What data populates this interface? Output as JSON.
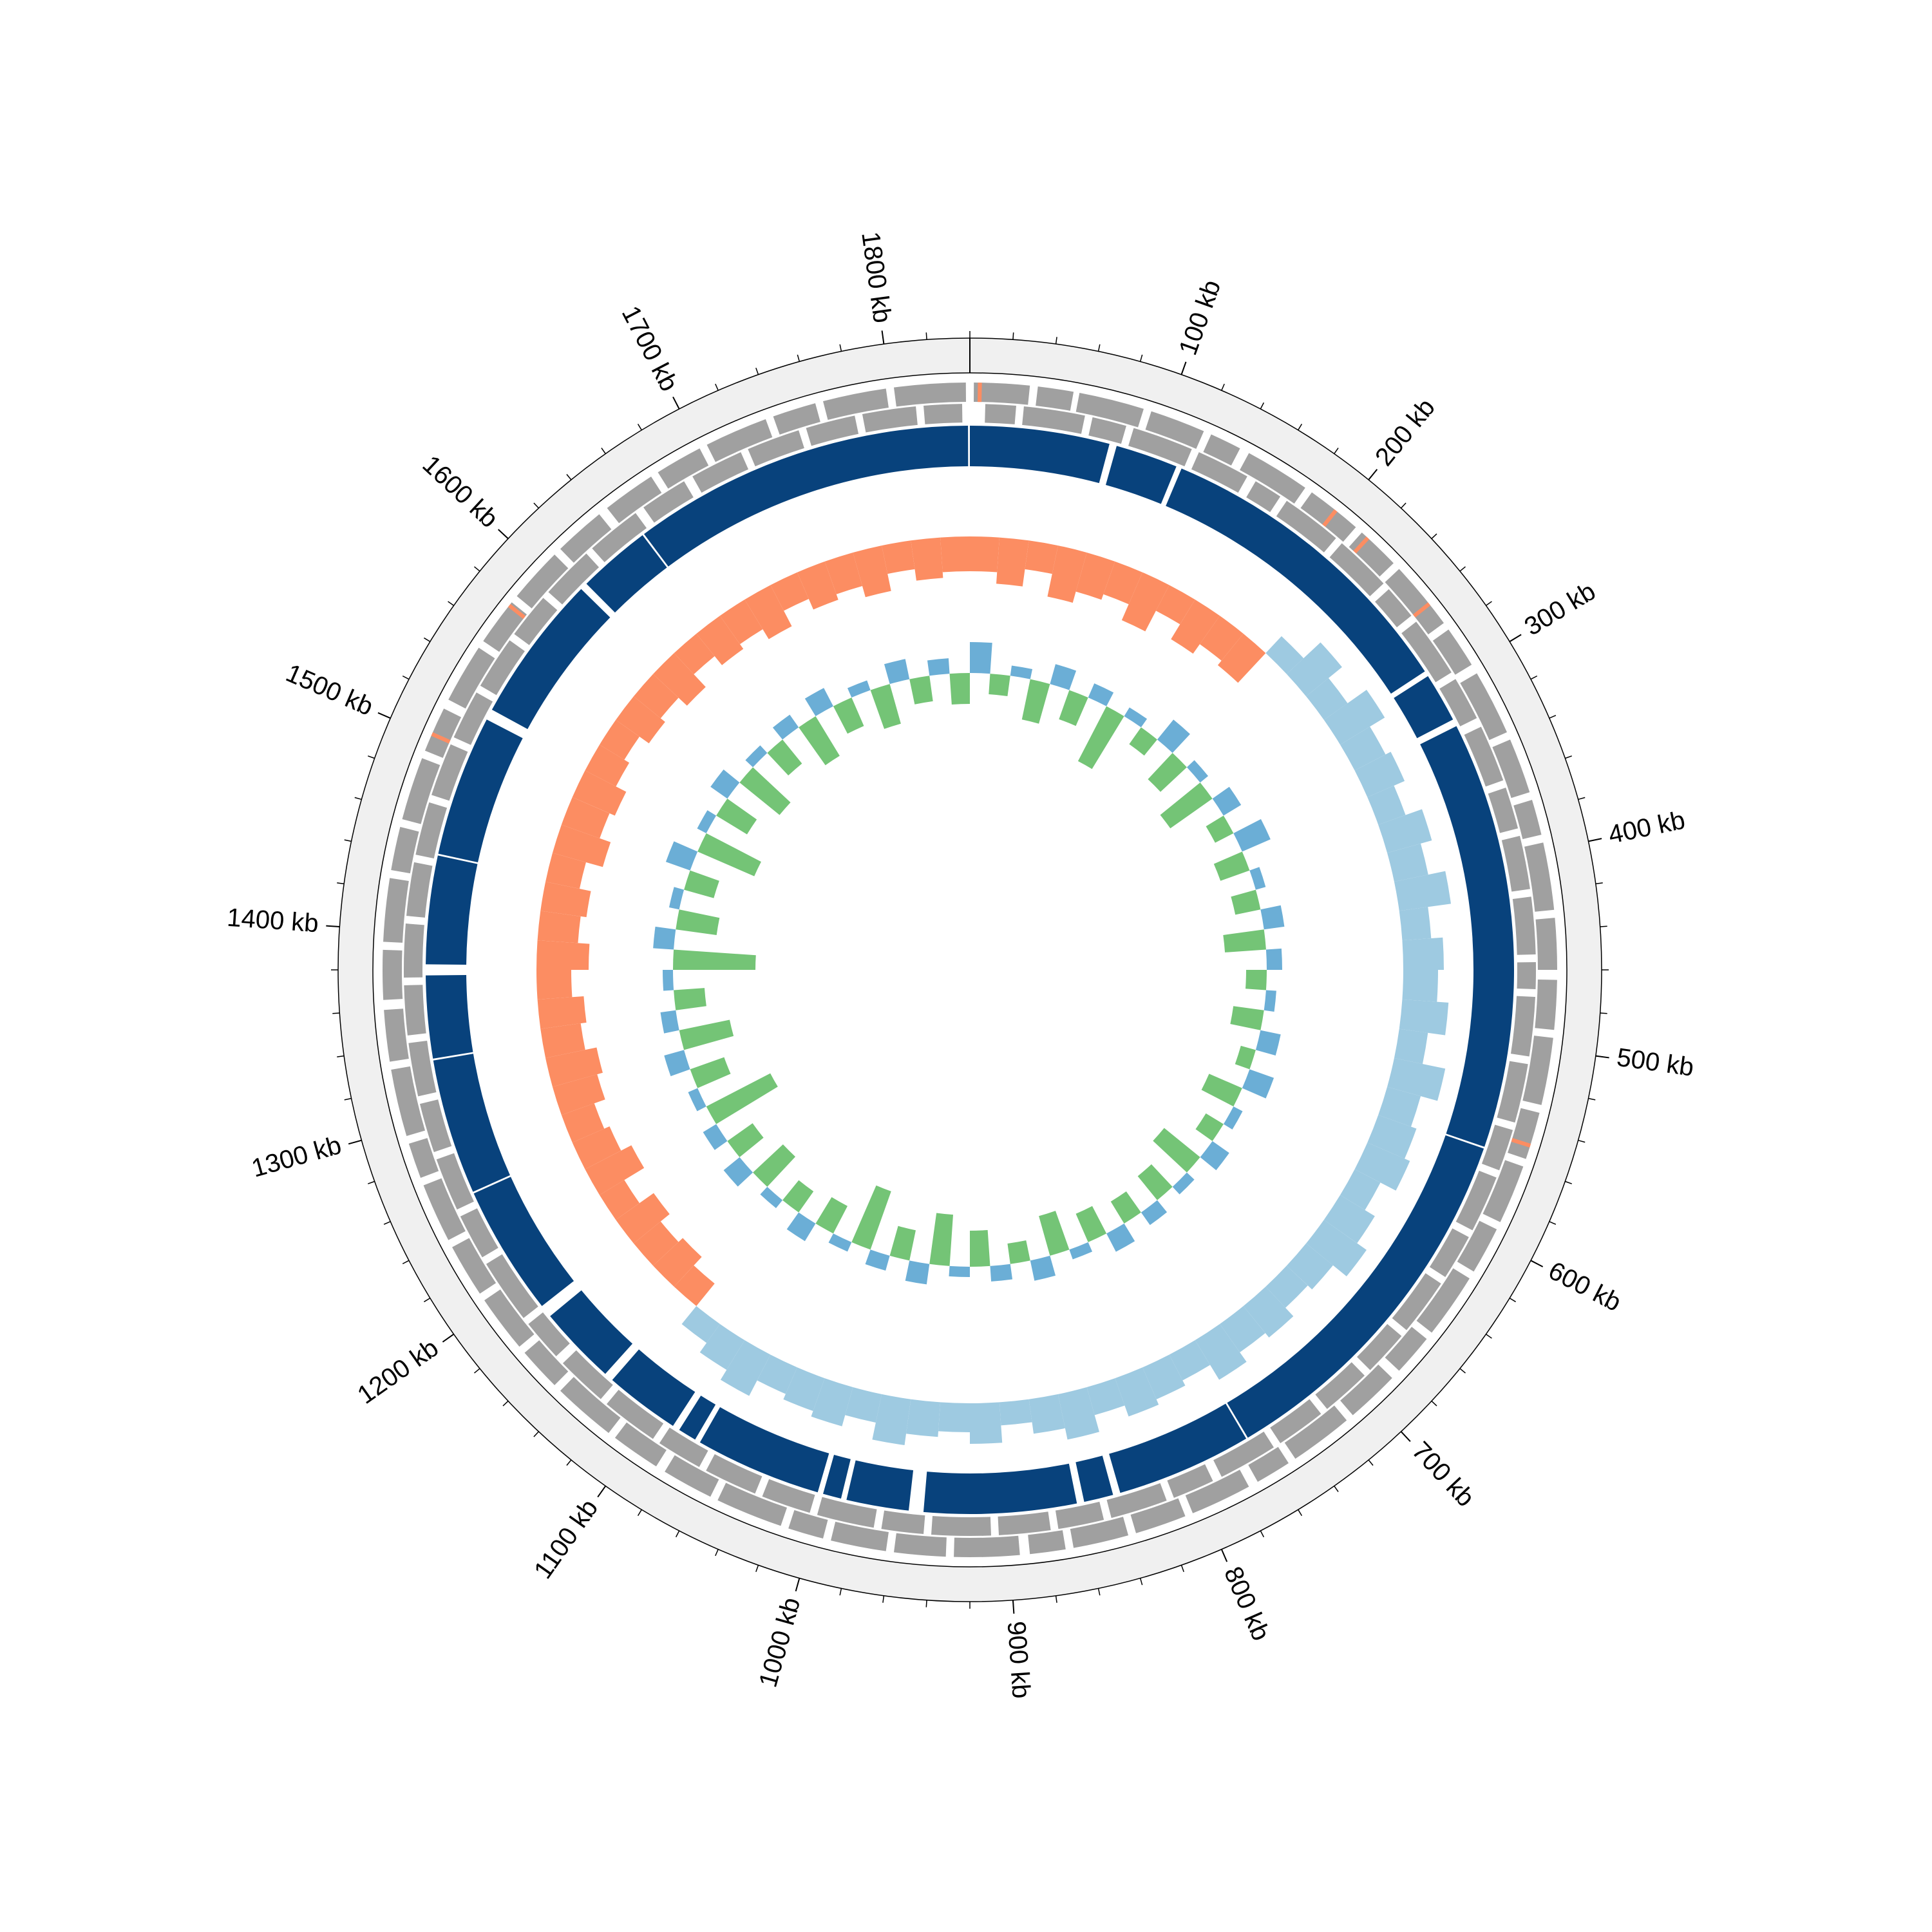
{
  "chart_data": {
    "type": "circos",
    "xlim": [
      0,
      1840
    ],
    "major_ticks": [
      {
        "value": 100,
        "label": "100 kb"
      },
      {
        "value": 200,
        "label": "200 kb"
      },
      {
        "value": 300,
        "label": "300 kb"
      },
      {
        "value": 400,
        "label": "400 kb"
      },
      {
        "value": 500,
        "label": "500 kb"
      },
      {
        "value": 600,
        "label": "600 kb"
      },
      {
        "value": 700,
        "label": "700 kb"
      },
      {
        "value": 800,
        "label": "800 kb"
      },
      {
        "value": 900,
        "label": "900 kb"
      },
      {
        "value": 1000,
        "label": "1000 kb"
      },
      {
        "value": 1100,
        "label": "1100 kb"
      },
      {
        "value": 1200,
        "label": "1200 kb"
      },
      {
        "value": 1300,
        "label": "1300 kb"
      },
      {
        "value": 1400,
        "label": "1400 kb"
      },
      {
        "value": 1500,
        "label": "1500 kb"
      },
      {
        "value": 1600,
        "label": "1600 kb"
      },
      {
        "value": 1700,
        "label": "1700 kb"
      },
      {
        "value": 1800,
        "label": "1800 kb"
      }
    ],
    "minor_ticks": [
      0,
      20,
      40,
      60,
      80,
      100,
      120,
      140,
      160,
      180,
      200,
      220,
      240,
      260,
      280,
      300,
      320,
      340,
      360,
      380,
      400,
      420,
      440,
      460,
      480,
      500,
      520,
      540,
      560,
      580,
      600,
      620,
      640,
      660,
      680,
      700,
      720,
      740,
      760,
      780,
      800,
      820,
      840,
      860,
      880,
      900,
      920,
      940,
      960,
      980,
      1000,
      1020,
      1040,
      1060,
      1080,
      1100,
      1120,
      1140,
      1160,
      1180,
      1200,
      1220,
      1240,
      1260,
      1280,
      1300,
      1320,
      1340,
      1360,
      1380,
      1400,
      1420,
      1440,
      1460,
      1480,
      1500,
      1520,
      1540,
      1560,
      1580,
      1600,
      1620,
      1640,
      1660,
      1680,
      1700,
      1720,
      1740,
      1760,
      1780,
      1800,
      1820
    ],
    "contig_color": "#08427c",
    "contigs": [
      [
        0,
        76
      ],
      [
        80,
        114
      ],
      [
        117,
        290
      ],
      [
        293,
        320
      ],
      [
        324,
        557
      ],
      [
        558,
        763
      ],
      [
        764,
        838
      ],
      [
        842,
        858
      ],
      [
        862,
        945
      ],
      [
        953,
        987
      ],
      [
        990,
        1000
      ],
      [
        1003,
        1072
      ],
      [
        1075,
        1085
      ],
      [
        1089,
        1130
      ],
      [
        1135,
        1178
      ],
      [
        1185,
        1256
      ],
      [
        1257,
        1331
      ],
      [
        1332,
        1377
      ],
      [
        1383,
        1442
      ],
      [
        1443,
        1520
      ],
      [
        1526,
        1607
      ],
      [
        1611,
        1651
      ],
      [
        1652,
        1839
      ]
    ],
    "gene_color": "#a0a0a0",
    "forward_genes": [
      [
        2,
        30
      ],
      [
        34,
        52
      ],
      [
        55,
        88
      ],
      [
        92,
        120
      ],
      [
        124,
        140
      ],
      [
        145,
        178
      ],
      [
        182,
        210
      ],
      [
        214,
        236
      ],
      [
        240,
        275
      ],
      [
        279,
        300
      ],
      [
        305,
        338
      ],
      [
        342,
        370
      ],
      [
        374,
        392
      ],
      [
        396,
        430
      ],
      [
        434,
        460
      ],
      [
        465,
        490
      ],
      [
        494,
        528
      ],
      [
        532,
        556
      ],
      [
        560,
        590
      ],
      [
        594,
        618
      ],
      [
        622,
        655
      ],
      [
        659,
        680
      ],
      [
        685,
        712
      ],
      [
        716,
        748
      ],
      [
        752,
        770
      ],
      [
        775,
        806
      ],
      [
        810,
        836
      ],
      [
        840,
        868
      ],
      [
        872,
        890
      ],
      [
        895,
        928
      ],
      [
        932,
        958
      ],
      [
        962,
        990
      ],
      [
        994,
        1012
      ],
      [
        1016,
        1050
      ],
      [
        1054,
        1080
      ],
      [
        1085,
        1110
      ],
      [
        1114,
        1146
      ],
      [
        1150,
        1172
      ],
      [
        1176,
        1205
      ],
      [
        1209,
        1236
      ],
      [
        1240,
        1270
      ],
      [
        1274,
        1292
      ],
      [
        1296,
        1330
      ],
      [
        1334,
        1360
      ],
      [
        1365,
        1390
      ],
      [
        1394,
        1426
      ],
      [
        1430,
        1452
      ],
      [
        1456,
        1488
      ],
      [
        1492,
        1515
      ],
      [
        1520,
        1550
      ],
      [
        1554,
        1578
      ],
      [
        1582,
        1610
      ],
      [
        1614,
        1640
      ],
      [
        1645,
        1672
      ],
      [
        1676,
        1700
      ],
      [
        1704,
        1736
      ],
      [
        1740,
        1762
      ],
      [
        1766,
        1798
      ],
      [
        1802,
        1838
      ]
    ],
    "reverse_genes": [
      [
        8,
        24
      ],
      [
        28,
        60
      ],
      [
        64,
        82
      ],
      [
        86,
        118
      ],
      [
        122,
        150
      ],
      [
        155,
        170
      ],
      [
        174,
        206
      ],
      [
        210,
        240
      ],
      [
        244,
        262
      ],
      [
        266,
        298
      ],
      [
        302,
        325
      ],
      [
        330,
        360
      ],
      [
        364,
        386
      ],
      [
        390,
        418
      ],
      [
        422,
        452
      ],
      [
        456,
        470
      ],
      [
        474,
        505
      ],
      [
        509,
        540
      ],
      [
        544,
        566
      ],
      [
        570,
        600
      ],
      [
        604,
        628
      ],
      [
        632,
        662
      ],
      [
        666,
        690
      ],
      [
        694,
        720
      ],
      [
        724,
        750
      ],
      [
        754,
        785
      ],
      [
        790,
        812
      ],
      [
        816,
        846
      ],
      [
        850,
        874
      ],
      [
        878,
        905
      ],
      [
        909,
        940
      ],
      [
        944,
        966
      ],
      [
        970,
        1000
      ],
      [
        1004,
        1030
      ],
      [
        1034,
        1062
      ],
      [
        1066,
        1090
      ],
      [
        1094,
        1124
      ],
      [
        1128,
        1155
      ],
      [
        1160,
        1182
      ],
      [
        1186,
        1220
      ],
      [
        1224,
        1248
      ],
      [
        1252,
        1280
      ],
      [
        1284,
        1310
      ],
      [
        1314,
        1342
      ],
      [
        1346,
        1372
      ],
      [
        1376,
        1404
      ],
      [
        1408,
        1436
      ],
      [
        1440,
        1468
      ],
      [
        1472,
        1500
      ],
      [
        1504,
        1530
      ],
      [
        1534,
        1562
      ],
      [
        1566,
        1590
      ],
      [
        1594,
        1622
      ],
      [
        1626,
        1655
      ],
      [
        1660,
        1685
      ],
      [
        1690,
        1718
      ],
      [
        1722,
        1750
      ],
      [
        1754,
        1780
      ],
      [
        1784,
        1812
      ],
      [
        1816,
        1836
      ]
    ],
    "rna_color": "#fc8d62",
    "rna": [
      [
        4,
        6
      ],
      [
        196,
        198
      ],
      [
        217,
        219
      ],
      [
        262,
        264
      ],
      [
        548,
        550
      ],
      [
        1500,
        1502
      ],
      [
        1575,
        1577
      ]
    ],
    "x": [
      0,
      20,
      40,
      60,
      80,
      100,
      120,
      140,
      160,
      180,
      200,
      220,
      240,
      260,
      280,
      300,
      320,
      340,
      360,
      380,
      400,
      420,
      440,
      460,
      480,
      500,
      520,
      540,
      560,
      580,
      600,
      620,
      640,
      660,
      680,
      700,
      720,
      740,
      760,
      780,
      800,
      820,
      840,
      860,
      880,
      900,
      920,
      940,
      960,
      980,
      1000,
      1020,
      1040,
      1060,
      1080,
      1100,
      1120,
      1140,
      1160,
      1180,
      1200,
      1220,
      1240,
      1260,
      1280,
      1300,
      1320,
      1340,
      1360,
      1380,
      1400,
      1420,
      1440,
      1460,
      1480,
      1500,
      1520,
      1540,
      1560,
      1580,
      1600,
      1620,
      1640,
      1660,
      1680,
      1700,
      1720,
      1740,
      1760,
      1780,
      1800,
      1820
    ],
    "gc_skew": {
      "lim": [
        -1,
        1
      ],
      "positive_color": "#9ecae1",
      "negative_color": "#fc8d62",
      "values": [
        -0.6,
        -0.8,
        -0.5,
        -0.9,
        -0.7,
        -0.6,
        -0.9,
        -0.5,
        -0.8,
        -0.6,
        -0.7,
        0.4,
        0.8,
        0.5,
        0.9,
        0.6,
        0.7,
        0.5,
        0.8,
        0.6,
        0.9,
        0.5,
        0.7,
        0.6,
        0.8,
        0.5,
        0.9,
        0.6,
        0.7,
        0.8,
        0.5,
        0.7,
        0.9,
        0.6,
        0.5,
        0.7,
        0.6,
        0.8,
        0.5,
        0.6,
        0.7,
        0.5,
        0.8,
        0.6,
        0.4,
        0.7,
        0.5,
        0.6,
        0.8,
        0.5,
        0.7,
        0.6,
        0.5,
        0.8,
        0.6,
        0.4,
        -0.5,
        -0.7,
        -0.6,
        -0.8,
        -0.5,
        -0.9,
        -0.7,
        -0.6,
        -0.8,
        -0.9,
        -0.7,
        -0.8,
        -0.6,
        -0.9,
        -0.7,
        -0.8,
        -0.6,
        -0.9,
        -0.7,
        -0.8,
        -0.6,
        -0.5,
        -0.7,
        -0.6,
        -0.8,
        -0.5,
        -0.7,
        -0.6,
        -0.8,
        -0.5,
        -0.7,
        -0.6,
        -0.8,
        -0.5,
        -0.7,
        -0.6
      ]
    },
    "gc_content": {
      "lim": [
        -1,
        1
      ],
      "positive_color": "#6baed6",
      "negative_color": "#74c476",
      "values": [
        0.3,
        -0.2,
        0.1,
        -0.4,
        0.2,
        -0.3,
        0.15,
        -0.6,
        0.1,
        -0.2,
        0.25,
        -0.35,
        0.1,
        -0.5,
        0.2,
        -0.2,
        0.3,
        -0.3,
        0.1,
        -0.25,
        0.2,
        -0.4,
        0.15,
        -0.2,
        0.1,
        -0.3,
        0.2,
        -0.15,
        0.25,
        -0.35,
        0.1,
        -0.2,
        0.2,
        -0.45,
        0.1,
        -0.3,
        0.15,
        -0.25,
        0.2,
        -0.3,
        0.1,
        -0.4,
        0.2,
        -0.2,
        0.15,
        -0.35,
        0.1,
        -0.5,
        0.2,
        -0.3,
        0.15,
        -0.6,
        0.1,
        -0.3,
        0.2,
        -0.25,
        0.1,
        -0.4,
        0.2,
        -0.3,
        0.15,
        -0.7,
        0.1,
        -0.35,
        0.2,
        -0.5,
        0.15,
        -0.3,
        0.1,
        -0.8,
        0.2,
        -0.4,
        0.1,
        -0.3,
        0.25,
        -0.6,
        0.1,
        -0.35,
        0.2,
        -0.5,
        0.1,
        -0.3,
        0.15,
        -0.45,
        0.2,
        -0.3,
        0.1,
        -0.4,
        0.2,
        -0.25,
        0.15,
        -0.3
      ]
    }
  }
}
